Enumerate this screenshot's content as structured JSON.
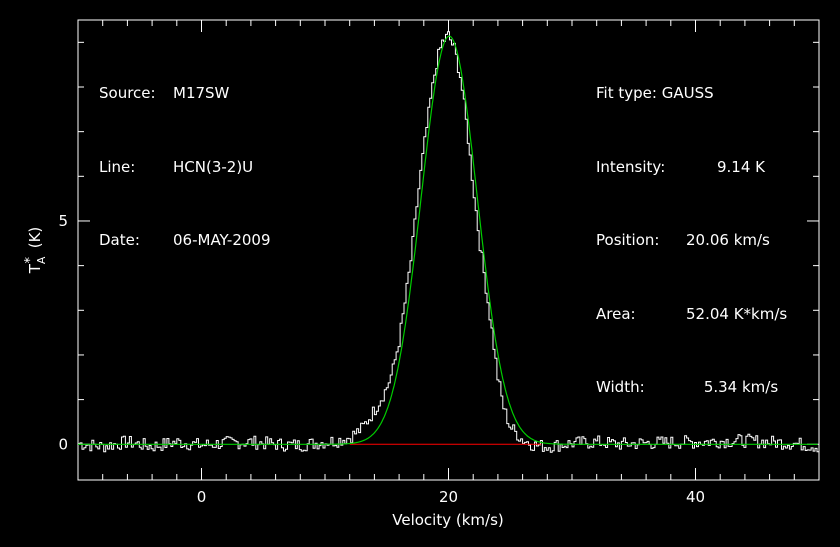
{
  "header_left": [
    {
      "key": "Source:",
      "value": "M17SW"
    },
    {
      "key": "Line:",
      "value": "HCN(3-2)U"
    },
    {
      "key": "Date:",
      "value": "06-MAY-2009"
    }
  ],
  "header_right": [
    {
      "key": "Fit type:",
      "value": "GAUSS"
    },
    {
      "key": "Intensity:",
      "value": "9.14 K"
    },
    {
      "key": "Position:",
      "value": "20.06 km/s"
    },
    {
      "key": "Area:",
      "value": "52.04 K*km/s"
    },
    {
      "key": "Width:",
      "value": "5.34 km/s"
    }
  ],
  "chart_data": {
    "type": "line",
    "xlabel": "Velocity (km/s)",
    "ylabel": "T_A^* (K)",
    "xlim": [
      -10,
      50
    ],
    "ylim": [
      -0.8,
      9.5
    ],
    "x_ticks": [
      0,
      20,
      40
    ],
    "y_ticks": [
      0,
      5
    ],
    "grid": false,
    "series": [
      {
        "color": "#ffffff",
        "style": "histogram",
        "x": [
          -10,
          -8,
          -6,
          -4,
          -2,
          0,
          2,
          4,
          6,
          8,
          10,
          11,
          12,
          13,
          14,
          15,
          15.5,
          16,
          16.5,
          17,
          17.5,
          18,
          18.5,
          19,
          19.5,
          20,
          20.5,
          21,
          21.5,
          22,
          22.5,
          23,
          23.5,
          24,
          24.5,
          25,
          26,
          27,
          28,
          30,
          32,
          34,
          36,
          38,
          40,
          42,
          44,
          46,
          48,
          50
        ],
        "y": [
          0.02,
          -0.05,
          0.05,
          -0.05,
          0.05,
          -0.02,
          0.03,
          0.05,
          0.0,
          -0.02,
          0.05,
          0.08,
          0.15,
          0.35,
          0.75,
          1.25,
          1.65,
          2.3,
          3.2,
          4.2,
          5.5,
          6.6,
          7.6,
          8.5,
          9.0,
          9.15,
          8.85,
          8.2,
          7.1,
          5.8,
          4.6,
          3.6,
          2.6,
          1.5,
          0.8,
          0.4,
          0.1,
          -0.02,
          -0.05,
          0.02,
          0.05,
          0.0,
          0.03,
          0.04,
          0.05,
          0.07,
          0.08,
          0.05,
          0.02,
          -0.05
        ]
      },
      {
        "color": "#00cc00",
        "style": "gaussian-fit",
        "amplitude": 9.14,
        "center": 20.06,
        "fwhm": 5.34
      },
      {
        "color": "#ff0000",
        "style": "baseline",
        "x": [
          12,
          27.5
        ],
        "y": [
          0,
          0
        ]
      }
    ]
  }
}
